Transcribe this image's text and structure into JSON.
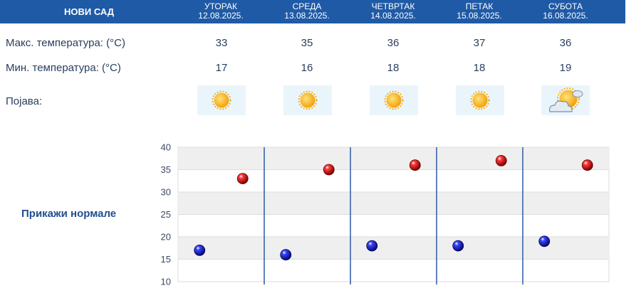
{
  "location": "НОВИ САД",
  "days": [
    {
      "name": "УТОРАК",
      "date": "12.08.2025.",
      "max": 33,
      "min": 17,
      "icon": "sun-icon"
    },
    {
      "name": "СРЕДА",
      "date": "13.08.2025.",
      "max": 35,
      "min": 16,
      "icon": "sun-icon"
    },
    {
      "name": "ЧЕТВРТАК",
      "date": "14.08.2025.",
      "max": 36,
      "min": 18,
      "icon": "sun-icon"
    },
    {
      "name": "ПЕТАК",
      "date": "15.08.2025.",
      "max": 37,
      "min": 18,
      "icon": "sun-icon"
    },
    {
      "name": "СУБОТА",
      "date": "16.08.2025.",
      "max": 36,
      "min": 19,
      "icon": "partly-cloudy-icon"
    }
  ],
  "labels": {
    "max_temp": "Макс. температура: (°C)",
    "min_temp": "Мин. температура: (°C)",
    "phenomenon": "Појава:",
    "show_normals": "Прикажи нормале"
  },
  "colors": {
    "header": "#1f5aa6",
    "max_marker": "#cc0000",
    "min_marker": "#0a10b0",
    "day_divider": "#2b5aa5"
  },
  "chart_data": {
    "type": "scatter",
    "title": "",
    "xlabel": "",
    "ylabel": "",
    "ylim": [
      10,
      40
    ],
    "yticks": [
      10,
      15,
      20,
      25,
      30,
      35,
      40
    ],
    "grid": true,
    "x": [
      "12.08.2025.",
      "13.08.2025.",
      "14.08.2025.",
      "15.08.2025.",
      "16.08.2025."
    ],
    "series": [
      {
        "key": "max",
        "values": [
          33,
          35,
          36,
          37,
          36
        ]
      },
      {
        "key": "min",
        "values": [
          17,
          16,
          18,
          18,
          19
        ]
      }
    ]
  }
}
